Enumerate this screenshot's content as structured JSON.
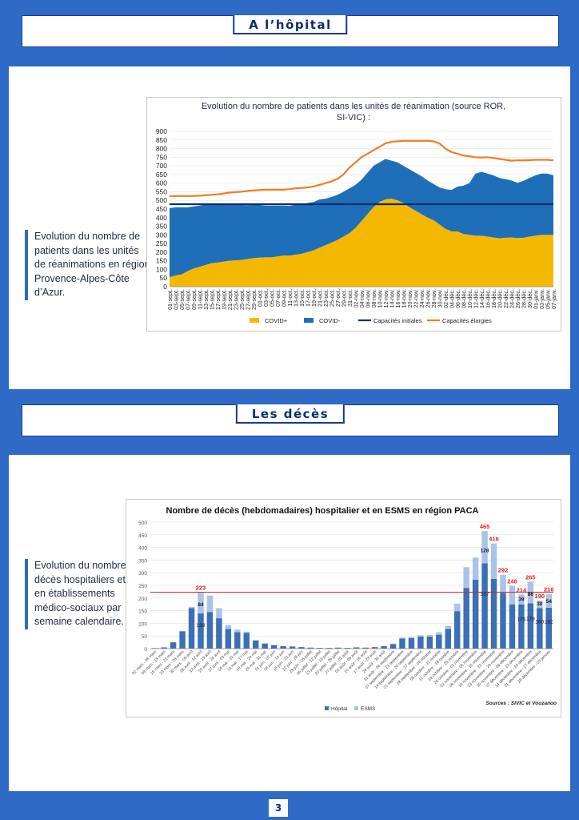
{
  "section1": {
    "title": "A l’hôpital"
  },
  "section2": {
    "title": "Les décès"
  },
  "side1": "Evolution du nombre de patients dans les unités de réanimations en région Provence-Alpes-Côte d’Azur.",
  "side2": "Evolution du nombre décès hospitaliers et en établissements médico-sociaux par semaine calendaire.",
  "page_number": "3",
  "colors": {
    "page_bg": "#2f6bc6",
    "covid_pos": "#f5b800",
    "covid_neg": "#1f6fb8",
    "capacity_initial": "#0b2e6e",
    "capacity_extended": "#ef7d22",
    "hopital": "#3b6fb6",
    "esms": "#a9c4e6",
    "annotation": "#e02020"
  },
  "chart_data": [
    {
      "type": "area",
      "title": "Evolution du nombre de patients dans les unités de réanimation (source ROR, SI-VIC) :",
      "ylim": [
        0,
        900
      ],
      "yticks": [
        0,
        50,
        100,
        150,
        200,
        250,
        300,
        350,
        400,
        450,
        500,
        550,
        600,
        650,
        700,
        750,
        800,
        850,
        900
      ],
      "x_labels": [
        "01-sept.",
        "03-sept.",
        "05-sept.",
        "07-sept.",
        "09-sept.",
        "11-sept.",
        "13-sept.",
        "15-sept.",
        "17-sept.",
        "19-sept.",
        "21-sept.",
        "23-sept.",
        "25-sept.",
        "27-sept.",
        "29-sept.",
        "01-oct.",
        "03-oct.",
        "05-oct.",
        "07-oct.",
        "09-oct.",
        "11-oct.",
        "13-oct.",
        "15-oct.",
        "17-oct.",
        "19-oct.",
        "21-oct.",
        "23-oct.",
        "25-oct.",
        "27-oct.",
        "29-oct.",
        "31-oct.",
        "02-nov.",
        "04-nov.",
        "06-nov.",
        "08-nov.",
        "10-nov.",
        "12-nov.",
        "14-nov.",
        "16-nov.",
        "18-nov.",
        "20-nov.",
        "22-nov.",
        "24-nov.",
        "26-nov.",
        "28-nov.",
        "30-nov.",
        "02-déc.",
        "04-déc.",
        "06-déc.",
        "08-déc.",
        "10-déc.",
        "12-déc.",
        "14-déc.",
        "16-déc.",
        "18-déc.",
        "20-déc.",
        "22-déc.",
        "24-déc.",
        "26-déc.",
        "28-déc.",
        "30-déc.",
        "01-janv.",
        "03-janv.",
        "05-janv.",
        "07-janv."
      ],
      "series": [
        {
          "name": "COVID+",
          "values": [
            55,
            65,
            70,
            90,
            105,
            115,
            125,
            135,
            140,
            145,
            150,
            152,
            155,
            160,
            165,
            168,
            170,
            170,
            175,
            180,
            180,
            185,
            190,
            200,
            210,
            225,
            240,
            255,
            270,
            290,
            310,
            340,
            380,
            420,
            460,
            490,
            505,
            510,
            500,
            485,
            460,
            440,
            420,
            400,
            385,
            360,
            335,
            320,
            320,
            305,
            300,
            295,
            295,
            290,
            285,
            280,
            283,
            285,
            282,
            283,
            290,
            295,
            300,
            300,
            300
          ]
        },
        {
          "name": "COVID-",
          "values": [
            400,
            395,
            390,
            370,
            360,
            355,
            350,
            340,
            335,
            330,
            325,
            322,
            318,
            312,
            310,
            305,
            300,
            300,
            295,
            290,
            288,
            290,
            290,
            285,
            280,
            280,
            270,
            265,
            262,
            260,
            260,
            250,
            240,
            240,
            240,
            230,
            235,
            220,
            220,
            215,
            220,
            220,
            220,
            215,
            210,
            215,
            230,
            240,
            260,
            280,
            300,
            360,
            370,
            365,
            360,
            350,
            340,
            330,
            320,
            330,
            340,
            350,
            355,
            355,
            345
          ]
        },
        {
          "name": "Capacités initiales",
          "values": [
            478,
            478,
            478,
            478,
            478,
            478,
            478,
            478,
            478,
            478,
            478,
            478,
            478,
            478,
            478,
            478,
            478,
            478,
            478,
            478,
            478,
            478,
            478,
            478,
            478,
            478,
            478,
            478,
            478,
            478,
            478,
            478,
            478,
            478,
            478,
            478,
            478,
            478,
            478,
            478,
            478,
            478,
            478,
            478,
            478,
            478,
            478,
            478,
            478,
            478,
            478,
            478,
            478,
            478,
            478,
            478,
            478,
            478,
            478,
            478,
            478,
            478,
            478,
            478,
            478
          ]
        },
        {
          "name": "Capacités élargies",
          "values": [
            525,
            525,
            525,
            525,
            525,
            527,
            530,
            532,
            535,
            540,
            545,
            548,
            550,
            555,
            558,
            560,
            562,
            562,
            562,
            562,
            565,
            570,
            572,
            575,
            580,
            590,
            600,
            610,
            625,
            650,
            690,
            720,
            750,
            770,
            790,
            810,
            830,
            840,
            842,
            845,
            845,
            845,
            845,
            845,
            842,
            830,
            800,
            780,
            770,
            760,
            755,
            750,
            748,
            750,
            745,
            740,
            735,
            730,
            732,
            732,
            733,
            735,
            735,
            735,
            732
          ]
        }
      ]
    },
    {
      "type": "bar",
      "title": "Nombre de décès (hebdomadaires) hospitalier et en ESMS en région PACA",
      "ylim": [
        0,
        500
      ],
      "yticks": [
        0,
        50,
        100,
        150,
        200,
        250,
        300,
        350,
        400,
        450,
        500
      ],
      "categories": [
        "02 mars - 08 mars",
        "09 mars - 15 mars",
        "16 mars - 22 mars",
        "23 mars - 29 mars",
        "30 mars - 05 avril",
        "06 avril - 12 avril",
        "13 avril - 19 avril",
        "20 avril - 26 avril",
        "27 avril - 03 mai",
        "04 mai - 10 mai",
        "11 mai - 17 mai",
        "18 mai - 24 mai",
        "25 mai - 31 mai",
        "01 juin - 07 juin",
        "08 juin - 14 juin",
        "15 juin - 21 juin",
        "22 juin - 28 juin",
        "29 juin - 05 juillet",
        "06 juillet - 12 juillet",
        "13 juillet - 19 juillet",
        "20 juillet - 26 juillet",
        "27 juillet - 02 août",
        "03 août - 09 août",
        "10 août - 16 août",
        "17 août - 23 août",
        "24 août - 30 août",
        "31 août - 06 septembre",
        "07 septembre - 13 septembre",
        "14 septembre - 20 septembre",
        "21 septembre - 27 septembre",
        "28 septembre - 04 octobre",
        "05 octobre - 11 octobre",
        "12 octobre - 18 octobre",
        "19 octobre - 25 octobre",
        "26 octobre - 01 novembre",
        "02 novembre - 08 novembre",
        "09 novembre - 15 novembre",
        "16 novembre - 22 novembre",
        "23 novembre - 29 novembre",
        "30 novembre - 06 décembre",
        "07 décembre - 13 décembre",
        "14 décembre - 20 décembre",
        "21 décembre - 27 décembre",
        "28 décembre - 03 janvier"
      ],
      "series": [
        {
          "name": "Hôpital",
          "values": [
            2,
            5,
            25,
            68,
            160,
            139,
            145,
            120,
            78,
            65,
            62,
            32,
            20,
            14,
            10,
            8,
            6,
            4,
            3,
            3,
            4,
            3,
            5,
            4,
            6,
            10,
            18,
            40,
            42,
            48,
            48,
            55,
            78,
            148,
            240,
            272,
            337,
            276,
            220,
            175,
            175,
            179,
            160,
            162
          ]
        },
        {
          "name": "ESMS",
          "values": [
            0,
            0,
            0,
            2,
            5,
            84,
            65,
            40,
            15,
            10,
            5,
            2,
            1,
            1,
            1,
            1,
            0,
            0,
            0,
            0,
            0,
            0,
            0,
            0,
            0,
            1,
            2,
            4,
            4,
            5,
            6,
            10,
            12,
            30,
            82,
            88,
            128,
            140,
            72,
            73,
            39,
            86,
            30,
            54
          ]
        }
      ],
      "annotations": {
        "totals_red": [
          {
            "index": 5,
            "label": "223"
          },
          {
            "index": 36,
            "label": "465"
          },
          {
            "index": 37,
            "label": "416"
          },
          {
            "index": 38,
            "label": "292"
          },
          {
            "index": 39,
            "label": "248"
          },
          {
            "index": 40,
            "label": "214"
          },
          {
            "index": 41,
            "label": "265"
          },
          {
            "index": 42,
            "label": "190"
          },
          {
            "index": 43,
            "label": "216"
          }
        ],
        "esms_labels": [
          {
            "index": 5,
            "label": "84"
          },
          {
            "index": 36,
            "label": "128"
          },
          {
            "index": 40,
            "label": "39"
          },
          {
            "index": 41,
            "label": "86"
          },
          {
            "index": 42,
            "label": "30"
          },
          {
            "index": 43,
            "label": "54"
          }
        ],
        "hopital_labels": [
          {
            "index": 5,
            "label": "139"
          },
          {
            "index": 36,
            "label": "337"
          },
          {
            "index": 40,
            "label": "175"
          },
          {
            "index": 41,
            "label": "179"
          },
          {
            "index": 42,
            "label": "160"
          },
          {
            "index": 43,
            "label": "162"
          }
        ]
      },
      "reference_line": 223,
      "source": "Sources : SIVIC et Voozanoo",
      "legend": [
        "Hôpital",
        "ESMS"
      ]
    }
  ]
}
